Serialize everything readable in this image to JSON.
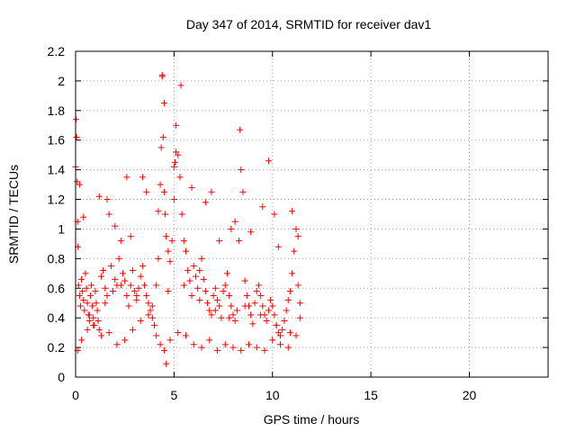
{
  "chart_data": {
    "type": "scatter",
    "title": "Day 347 of 2014, SRMTID for receiver dav1",
    "xlabel": "GPS time / hours",
    "ylabel": "SRMTID / TECUs",
    "xlim": [
      0,
      24
    ],
    "ylim": [
      0,
      2.2
    ],
    "x_ticks": [
      0,
      5,
      10,
      15,
      20
    ],
    "x_tick_labels": [
      "0",
      "5",
      "10",
      "15",
      "20"
    ],
    "y_ticks": [
      0,
      0.2,
      0.4,
      0.6,
      0.8,
      1,
      1.2,
      1.4,
      1.6,
      1.8,
      2,
      2.2
    ],
    "y_tick_labels": [
      "0",
      "0.2",
      "0.4",
      "0.6",
      "0.8",
      "1",
      "1.2",
      "1.4",
      "1.6",
      "1.8",
      "2",
      "2.2"
    ],
    "grid": true,
    "marker": "+",
    "series": [
      {
        "name": "dav1",
        "color": "#ff0000",
        "x": [
          0.02,
          0.05,
          0.08,
          0.1,
          0.12,
          0.15,
          0.2,
          0.25,
          0.3,
          0.35,
          0.4,
          0.45,
          0.5,
          0.55,
          0.6,
          0.65,
          0.7,
          0.75,
          0.8,
          0.85,
          0.9,
          0.95,
          1.0,
          1.05,
          1.1,
          1.15,
          1.2,
          1.3,
          1.4,
          1.5,
          1.6,
          1.7,
          1.8,
          1.9,
          2.0,
          2.1,
          2.2,
          2.3,
          2.4,
          2.5,
          2.6,
          2.7,
          2.8,
          2.9,
          3.0,
          3.1,
          3.2,
          3.3,
          3.4,
          3.5,
          3.6,
          3.7,
          3.8,
          3.9,
          4.0,
          4.1,
          4.2,
          4.3,
          4.35,
          4.4,
          4.45,
          4.5,
          4.55,
          4.6,
          4.7,
          4.8,
          4.9,
          5.0,
          5.05,
          5.1,
          5.2,
          5.3,
          5.4,
          5.5,
          5.6,
          5.7,
          5.8,
          5.9,
          6.0,
          6.1,
          6.2,
          6.3,
          6.4,
          6.5,
          6.6,
          6.7,
          6.8,
          6.9,
          7.0,
          7.1,
          7.2,
          7.3,
          7.4,
          7.5,
          7.6,
          7.7,
          7.8,
          7.9,
          8.0,
          8.1,
          8.2,
          8.3,
          8.4,
          8.5,
          8.6,
          8.7,
          8.8,
          8.9,
          9.0,
          9.1,
          9.2,
          9.3,
          9.4,
          9.5,
          9.6,
          9.7,
          9.8,
          9.9,
          10.0,
          10.1,
          10.2,
          10.3,
          10.4,
          10.5,
          10.6,
          10.7,
          10.8,
          10.9,
          11.0,
          11.1,
          11.2,
          11.3,
          11.4,
          0.1,
          0.3,
          0.6,
          0.9,
          1.3,
          1.7,
          2.1,
          2.5,
          2.9,
          3.3,
          3.7,
          4.1,
          4.3,
          4.5,
          4.8,
          5.2,
          5.6,
          6.0,
          6.4,
          6.8,
          7.2,
          7.6,
          8.0,
          8.4,
          8.8,
          9.2,
          9.6,
          10.0,
          10.4,
          10.8,
          11.2,
          0.0,
          0.05,
          4.4,
          5.35,
          4.5,
          8.35,
          9.8,
          5.0,
          4.6,
          0.2,
          1.6,
          3.6,
          2.6,
          6.9,
          10.1,
          7.9,
          0.4,
          1.2,
          2.0,
          2.8,
          3.4,
          4.2,
          5.1,
          5.9,
          6.6,
          7.3,
          8.1,
          8.9,
          9.5,
          10.3,
          11.0,
          11.3,
          0.7,
          1.5,
          2.3,
          3.1,
          3.9,
          4.7,
          5.5,
          6.3,
          7.1,
          7.8,
          8.6,
          9.4,
          10.2,
          10.9,
          11.4
        ],
        "y": [
          1.74,
          1.62,
          1.32,
          1.05,
          0.88,
          0.62,
          0.55,
          0.48,
          0.66,
          0.58,
          0.52,
          0.45,
          0.7,
          0.6,
          0.5,
          0.42,
          0.38,
          0.55,
          0.62,
          0.48,
          0.4,
          0.35,
          0.58,
          0.5,
          0.45,
          0.38,
          0.32,
          0.68,
          0.72,
          0.6,
          0.55,
          1.1,
          0.75,
          0.58,
          0.66,
          0.62,
          0.8,
          0.92,
          0.7,
          0.65,
          0.55,
          0.48,
          0.62,
          0.72,
          0.58,
          0.52,
          0.6,
          0.68,
          0.75,
          0.62,
          0.55,
          0.5,
          0.45,
          0.4,
          0.35,
          0.62,
          0.8,
          1.3,
          1.55,
          2.04,
          1.62,
          1.25,
          1.1,
          0.95,
          0.85,
          0.78,
          0.92,
          1.2,
          1.45,
          1.7,
          1.5,
          1.35,
          1.1,
          0.92,
          0.85,
          0.72,
          0.65,
          0.55,
          0.75,
          0.68,
          0.6,
          0.72,
          0.8,
          0.66,
          0.58,
          0.5,
          0.45,
          0.42,
          0.55,
          0.6,
          0.52,
          0.48,
          0.4,
          0.58,
          0.62,
          0.7,
          0.55,
          0.48,
          0.42,
          0.38,
          0.45,
          0.92,
          1.4,
          1.25,
          0.65,
          0.55,
          0.48,
          0.42,
          0.36,
          0.5,
          0.58,
          0.62,
          0.55,
          0.48,
          0.42,
          0.38,
          0.45,
          0.52,
          0.48,
          0.42,
          0.35,
          0.3,
          0.28,
          0.32,
          0.38,
          0.45,
          0.52,
          0.58,
          0.7,
          0.85,
          1.0,
          0.62,
          0.5,
          0.18,
          0.25,
          0.32,
          0.35,
          0.28,
          0.3,
          0.22,
          0.25,
          0.32,
          0.38,
          0.42,
          0.28,
          0.22,
          0.18,
          0.25,
          0.3,
          0.28,
          0.22,
          0.2,
          0.25,
          0.18,
          0.22,
          0.2,
          0.18,
          0.22,
          0.2,
          0.18,
          0.25,
          0.22,
          0.2,
          0.28,
          1.42,
          1.62,
          2.03,
          1.97,
          1.85,
          1.67,
          1.46,
          1.42,
          0.09,
          1.3,
          1.2,
          1.25,
          1.35,
          1.25,
          1.1,
          1.0,
          1.08,
          1.22,
          1.02,
          0.95,
          1.35,
          1.12,
          1.52,
          1.28,
          1.18,
          0.92,
          1.05,
          0.98,
          1.15,
          0.88,
          1.12,
          0.95,
          0.42,
          0.5,
          0.62,
          0.55,
          0.48,
          0.58,
          0.62,
          0.52,
          0.45,
          0.4,
          0.48,
          0.42,
          0.35,
          0.3,
          0.4
        ]
      }
    ]
  }
}
